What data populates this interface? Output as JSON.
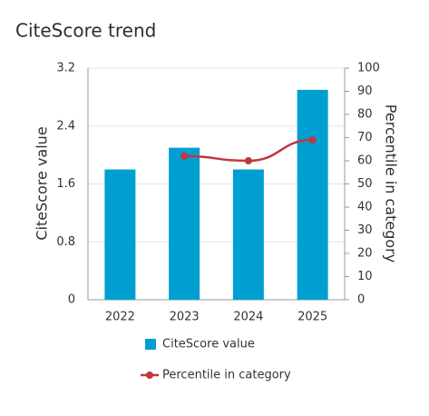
{
  "chart_data": {
    "type": "bar",
    "title": "CiteScore trend",
    "y_label": "CiteScore value",
    "y2_label": "Percentile in category",
    "categories": [
      "2022",
      "2023",
      "2024",
      "2025"
    ],
    "series": [
      {
        "name": "CiteScore value",
        "type": "bar",
        "color": "#009fd1",
        "values": [
          1.8,
          2.1,
          1.8,
          2.9
        ]
      },
      {
        "name": "Percentile in category",
        "type": "line",
        "axis": "y2",
        "color": "#c0373c",
        "values": [
          null,
          62,
          60,
          69
        ]
      }
    ],
    "ylim": [
      0,
      3.2
    ],
    "yticks": [
      0,
      0.8,
      1.6,
      2.4,
      3.2
    ],
    "y2lim": [
      0,
      100
    ],
    "y2ticks": [
      0,
      10,
      20,
      30,
      40,
      50,
      60,
      70,
      80,
      90,
      100
    ],
    "grid": true
  }
}
